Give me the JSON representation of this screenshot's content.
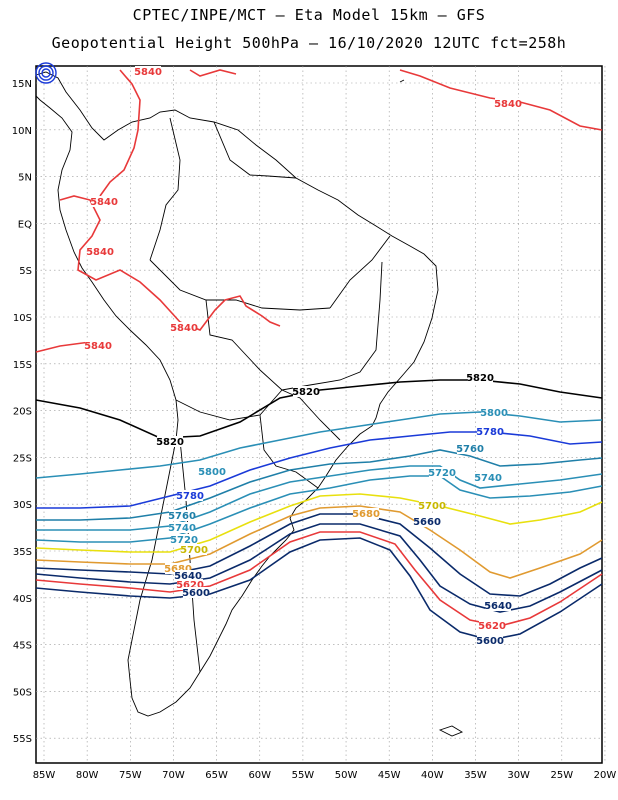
{
  "title_line1": "CPTEC/INPE/MCT –  Eta Model 15km – GFS",
  "title_line2": "Geopotential Height 500hPa – 16/10/2020 12UTC fct=258h",
  "lat_labels": [
    "15N",
    "10N",
    "5N",
    "EQ",
    "5S",
    "10S",
    "15S",
    "20S",
    "25S",
    "30S",
    "35S",
    "40S",
    "45S",
    "50S",
    "55S"
  ],
  "lon_labels": [
    "85W",
    "80W",
    "75W",
    "70W",
    "65W",
    "60W",
    "55W",
    "50W",
    "45W",
    "40W",
    "35W",
    "30W",
    "25W",
    "20W"
  ],
  "colors": {
    "5840": "#e8393a",
    "5820": "#000000",
    "5800": "#2a8fb6",
    "5780": "#1a3ad8",
    "5760": "#1f7fa8",
    "5740": "#2a8fb6",
    "5720": "#2a8fb6",
    "5700": "#e8e00e",
    "5680": "#e09a30",
    "5660": "#0a2a6a",
    "5640": "#0a2a6a",
    "5620": "#e8393a",
    "5600": "#0a2a6a"
  },
  "contour_labels": [
    {
      "text": "5840",
      "color": "#e8393a"
    },
    {
      "text": "5840",
      "color": "#e8393a"
    },
    {
      "text": "5840",
      "color": "#e8393a"
    },
    {
      "text": "5840",
      "color": "#e8393a"
    },
    {
      "text": "5840",
      "color": "#e8393a"
    },
    {
      "text": "5840",
      "color": "#e8393a"
    },
    {
      "text": "5820",
      "color": "#000000"
    },
    {
      "text": "5820",
      "color": "#000000"
    },
    {
      "text": "5820",
      "color": "#000000"
    },
    {
      "text": "5800",
      "color": "#2a8fb6"
    },
    {
      "text": "5800",
      "color": "#2a8fb6"
    },
    {
      "text": "5780",
      "color": "#1a3ad8"
    },
    {
      "text": "5780",
      "color": "#1a3ad8"
    },
    {
      "text": "5760",
      "color": "#1f7fa8"
    },
    {
      "text": "5760",
      "color": "#1f7fa8"
    },
    {
      "text": "5740",
      "color": "#2a8fb6"
    },
    {
      "text": "5740",
      "color": "#2a8fb6"
    },
    {
      "text": "5720",
      "color": "#2a8fb6"
    },
    {
      "text": "5720",
      "color": "#2a8fb6"
    },
    {
      "text": "5700",
      "color": "#c8b800"
    },
    {
      "text": "5700",
      "color": "#c8b800"
    },
    {
      "text": "5680",
      "color": "#e09a30"
    },
    {
      "text": "5680",
      "color": "#e09a30"
    },
    {
      "text": "5660",
      "color": "#0a2a6a"
    },
    {
      "text": "5640",
      "color": "#0a2a6a"
    },
    {
      "text": "5640",
      "color": "#0a2a6a"
    },
    {
      "text": "5620",
      "color": "#e8393a"
    },
    {
      "text": "5620",
      "color": "#e8393a"
    },
    {
      "text": "5600",
      "color": "#0a2a6a"
    },
    {
      "text": "5600",
      "color": "#0a2a6a"
    }
  ]
}
